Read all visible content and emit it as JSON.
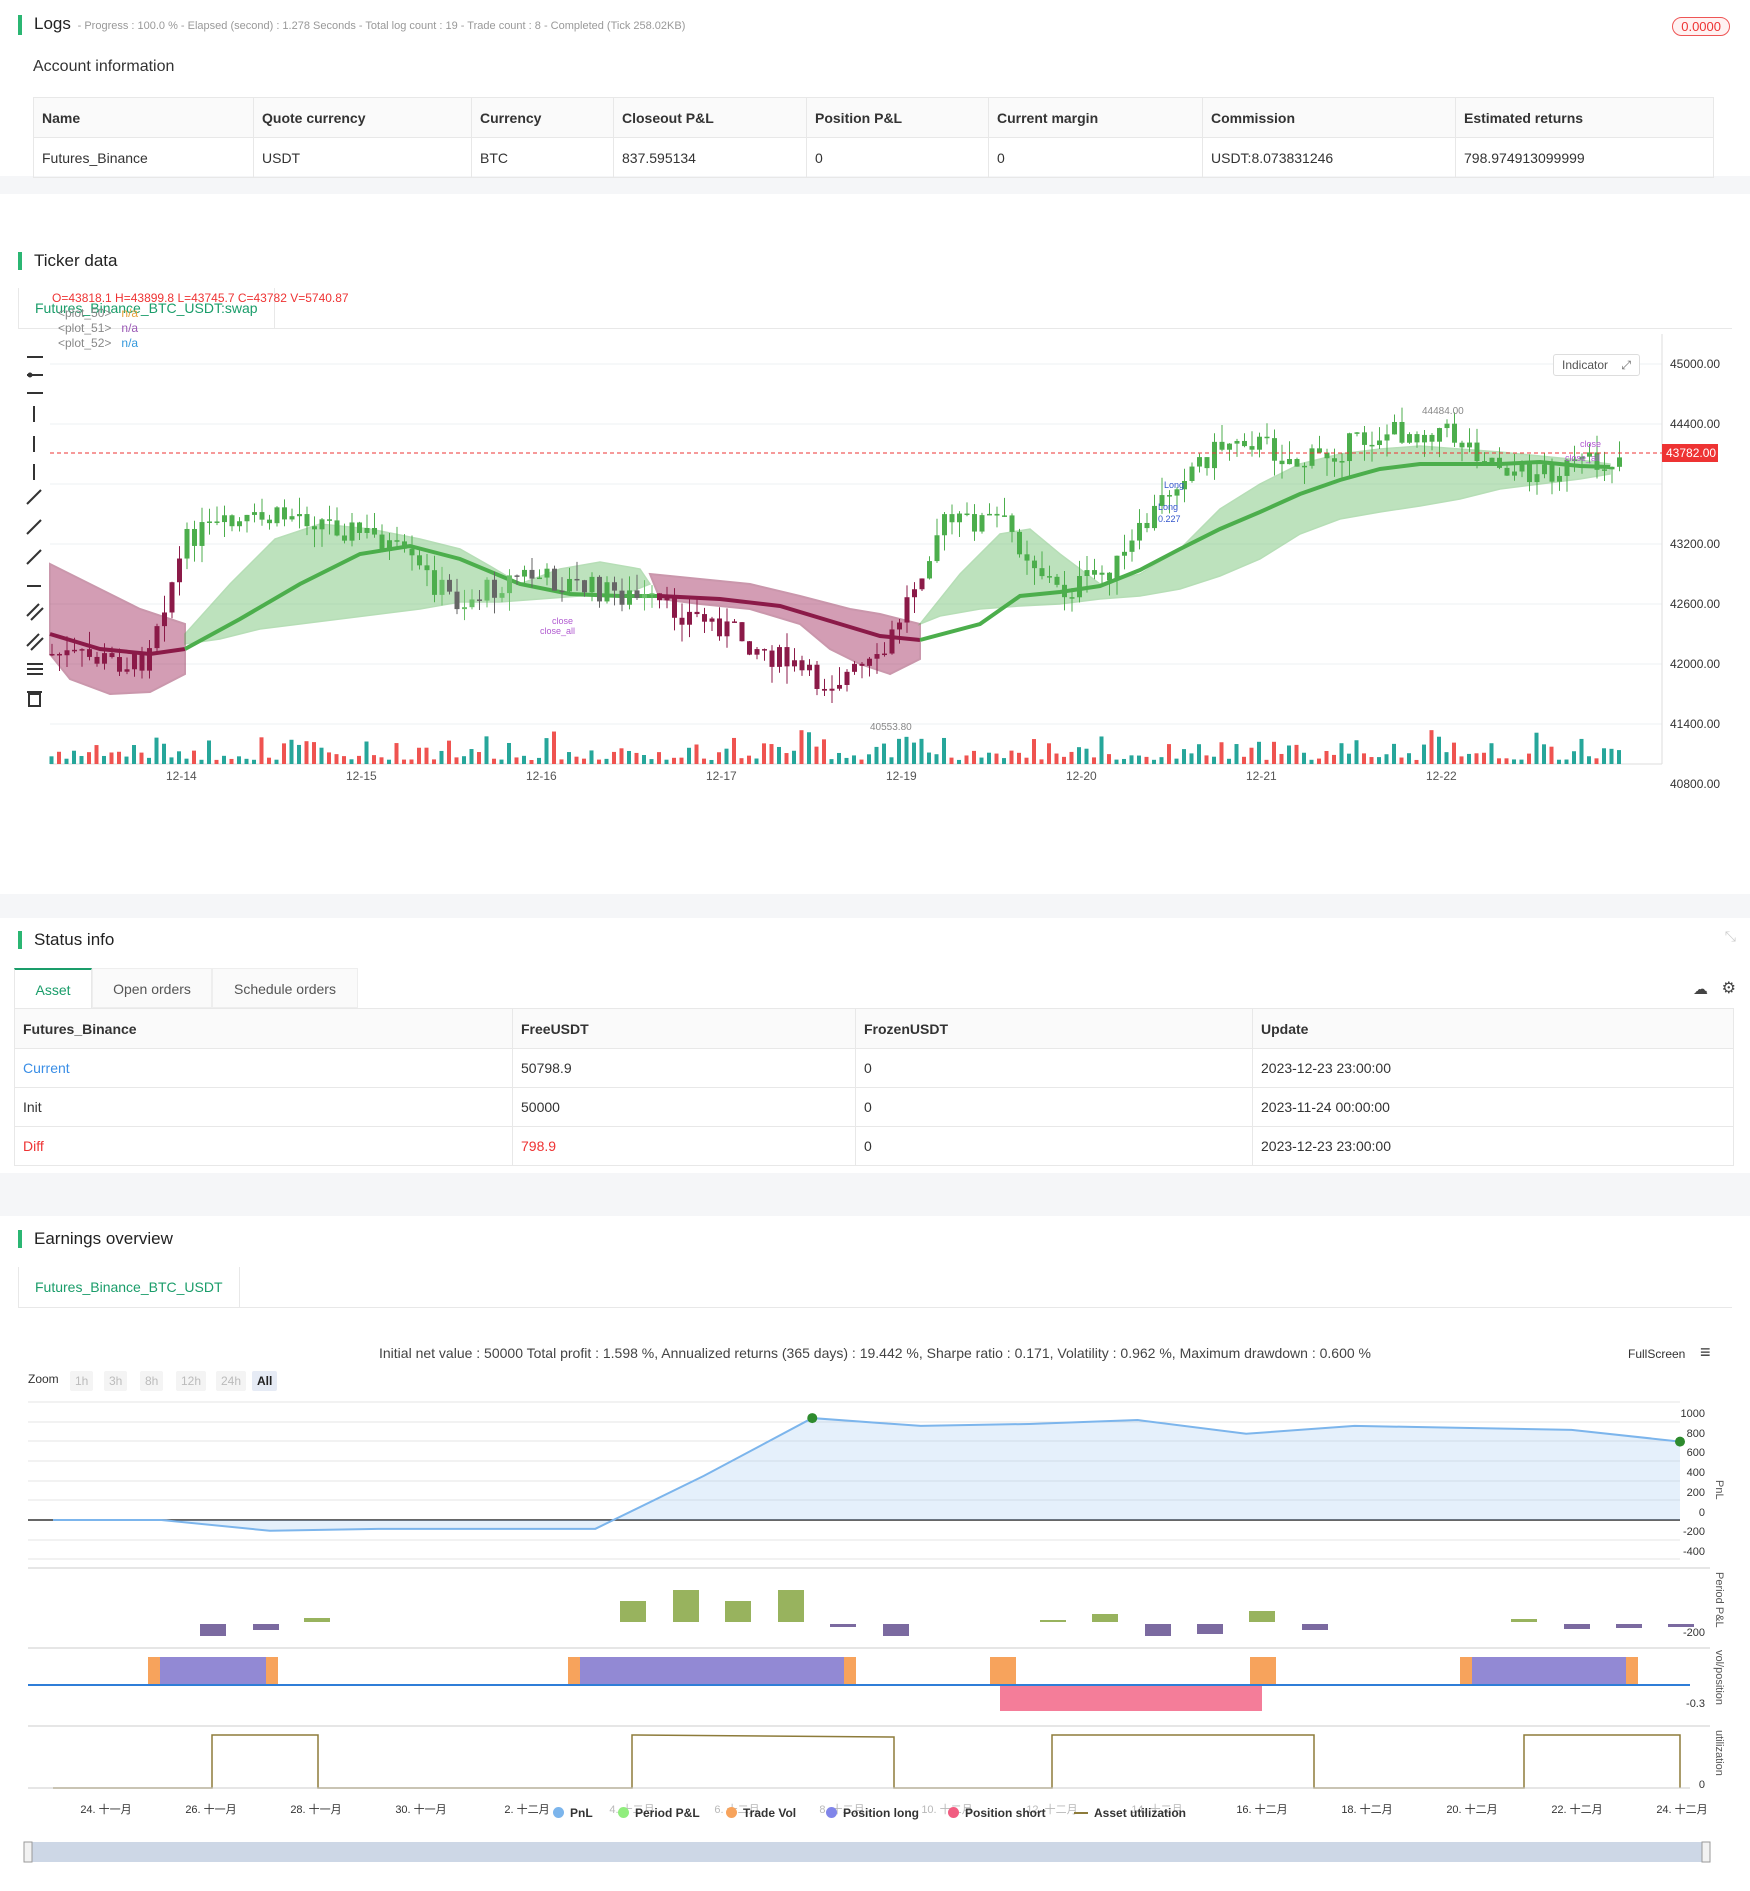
{
  "logs": {
    "title": "Logs",
    "summary": "- Progress : 100.0 % - Elapsed (second) : 1.278 Seconds - Total log count : 19 - Trade count : 8 - Completed (Tick 258.02KB)",
    "badge": "0.0000"
  },
  "account": {
    "title": "Account information",
    "headers": [
      "Name",
      "Quote currency",
      "Currency",
      "Closeout P&L",
      "Position P&L",
      "Current margin",
      "Commission",
      "Estimated returns"
    ],
    "row": [
      "Futures_Binance",
      "USDT",
      "BTC",
      "837.595134",
      "0",
      "0",
      "USDT:8.073831246",
      "798.974913099999"
    ]
  },
  "ticker": {
    "title": "Ticker data",
    "tab": "Futures_Binance_BTC_USDT:swap",
    "ohlc": "O=43818.1 H=43899.8 L=43745.7 C=43782 V=5740.87",
    "plots": [
      {
        "label": "<plot_50>",
        "value": "n/a",
        "color": "#e6a23c"
      },
      {
        "label": "<plot_51>",
        "value": "n/a",
        "color": "#9b59b6"
      },
      {
        "label": "<plot_52>",
        "value": "n/a",
        "color": "#3498db"
      }
    ],
    "indicator_btn": "Indicator",
    "price_axis": [
      "45000.00",
      "44400.00",
      "43800.00",
      "43200.00",
      "42600.00",
      "42000.00",
      "41400.00",
      "40800.00"
    ],
    "current_price": "43782.00",
    "time_axis": [
      "12-14",
      "12-15",
      "12-16",
      "12-17",
      "12-19",
      "12-20",
      "12-21",
      "12-22"
    ],
    "high_label": "44484.00",
    "low_label": "40553.80",
    "annotations": {
      "close1": "close",
      "close_all1": "close_all",
      "close2": "close",
      "close_all2": "close_all",
      "long1": "Long",
      "long2": "Long",
      "qty": "0.227"
    }
  },
  "status": {
    "title": "Status info",
    "tabs": [
      "Asset",
      "Open orders",
      "Schedule orders"
    ],
    "headers": [
      "Futures_Binance",
      "FreeUSDT",
      "FrozenUSDT",
      "Update"
    ],
    "rows": [
      {
        "name": "Current",
        "free": "50798.9",
        "frozen": "0",
        "update": "2023-12-23 23:00:00"
      },
      {
        "name": "Init",
        "free": "50000",
        "frozen": "0",
        "update": "2023-11-24 00:00:00"
      },
      {
        "name": "Diff",
        "free": "798.9",
        "frozen": "0",
        "update": "2023-12-23 23:00:00"
      }
    ]
  },
  "earnings": {
    "title": "Earnings overview",
    "tab": "Futures_Binance_BTC_USDT",
    "summary": "Initial net value : 50000 Total profit : 1.598 %, Annualized returns (365 days) : 19.442 %, Sharpe ratio : 0.171, Volatility : 0.962 %, Maximum drawdown : 0.600 %",
    "fullscreen": "FullScreen",
    "zoom_label": "Zoom",
    "zoom_options": [
      "1h",
      "3h",
      "8h",
      "12h",
      "24h",
      "All"
    ],
    "pnl_axis": [
      "1000",
      "800",
      "600",
      "400",
      "200",
      "0",
      "-200",
      "-400"
    ],
    "period_axis": [
      "-200"
    ],
    "pos_axis": [
      "-0.3"
    ],
    "util_axis": [
      "0"
    ],
    "axis_titles": {
      "pnl": "PnL",
      "period": "Period P&L",
      "pos": "vol/position",
      "util": "utilization"
    },
    "x_axis": [
      "24. 十一月",
      "26. 十一月",
      "28. 十一月",
      "30. 十一月",
      "2. 十二月",
      "4. 十二月",
      "6. 十二月",
      "8. 十二月",
      "10. 十二月",
      "12. 十二月",
      "14. 十二月",
      "16. 十二月",
      "18. 十二月",
      "20. 十二月",
      "22. 十二月",
      "24. 十二月"
    ],
    "legend": [
      {
        "name": "PnL",
        "color": "#7cb5ec"
      },
      {
        "name": "Period P&L",
        "color": "#90ed7d"
      },
      {
        "name": "Trade Vol",
        "color": "#f7a35c"
      },
      {
        "name": "Position long",
        "color": "#8085e9"
      },
      {
        "name": "Position short",
        "color": "#f15c80"
      },
      {
        "name": "Asset utilization",
        "color": "#8d7b3a"
      }
    ],
    "chart_data": {
      "type": "line",
      "x": [
        "11-24",
        "11-26",
        "11-28",
        "11-30",
        "12-02",
        "12-04",
        "12-06",
        "12-08",
        "12-10",
        "12-12",
        "12-14",
        "12-16",
        "12-18",
        "12-20",
        "12-22",
        "12-24"
      ],
      "series": [
        {
          "name": "PnL",
          "values": [
            0,
            0,
            -110,
            -90,
            -90,
            -90,
            450,
            1040,
            960,
            980,
            1020,
            880,
            960,
            940,
            920,
            800
          ]
        }
      ],
      "ylim": [
        -400,
        1100
      ]
    }
  }
}
